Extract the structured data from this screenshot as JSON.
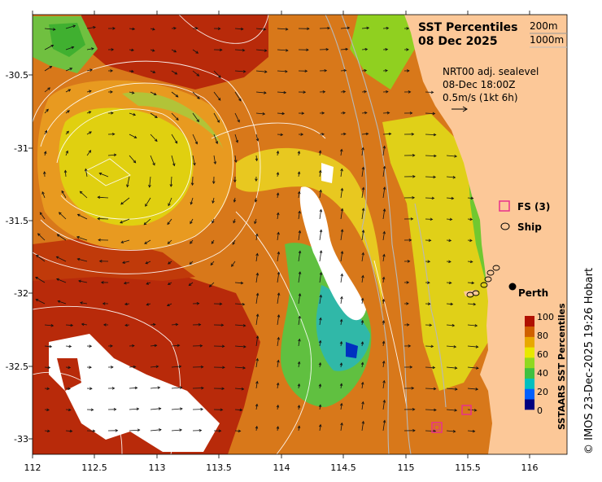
{
  "title": {
    "line1": "SST Percentiles",
    "line2": "08 Dec 2025"
  },
  "isobath_legend": [
    "200m",
    "1000m"
  ],
  "current_info": {
    "line1": "NRT00 adj. sealevel",
    "line2": "08-Dec 18:00Z",
    "line3": "0.5m/s (1kt 6h)"
  },
  "legend_items": {
    "fs": "FS (3)",
    "ship": "Ship"
  },
  "city": "Perth",
  "colorbar": {
    "label": "SSTAARS SST Percentiles",
    "ticks": [
      "0",
      "20",
      "40",
      "60",
      "80",
      "100"
    ],
    "colors": [
      "#00007f",
      "#0060ff",
      "#00bfbf",
      "#40c040",
      "#90d820",
      "#e8e800",
      "#e8a800",
      "#d06000",
      "#b01000"
    ]
  },
  "credit": "© IMOS 23-Dec-2025 19:26 Hobart",
  "axes": {
    "x_ticks": [
      "112",
      "112.5",
      "113",
      "113.5",
      "114",
      "114.5",
      "115",
      "115.5",
      "116"
    ],
    "y_ticks": [
      "-30.5",
      "-31",
      "-31.5",
      "-32",
      "-32.5",
      "-33"
    ]
  }
}
